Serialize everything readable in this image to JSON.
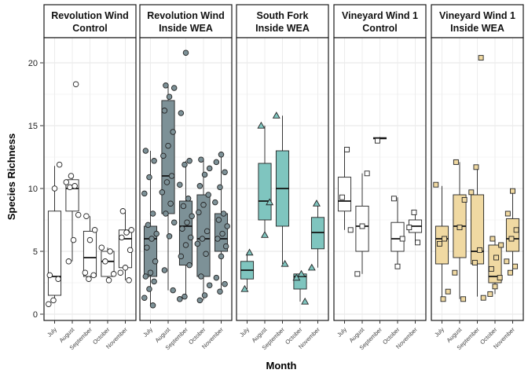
{
  "chart_data": {
    "type": "box",
    "ylabel": "Species Richness",
    "xlabel": "Month",
    "ylim": [
      -0.5,
      22
    ],
    "yticks": [
      0,
      5,
      10,
      15,
      20
    ],
    "grid": true,
    "months": [
      "July",
      "August",
      "September",
      "October",
      "November"
    ],
    "panels": [
      {
        "title_line1": "Revolution Wind",
        "title_line2": "Control",
        "fill": "#ffffff",
        "shape": "circle",
        "boxes": [
          {
            "month": "July",
            "whisker_low": 1,
            "q1": 1.5,
            "median": 3,
            "q3": 8.2,
            "whisker_high": 11.8
          },
          {
            "month": "August",
            "whisker_low": 4.2,
            "q1": 8.2,
            "median": 10,
            "q3": 10.7,
            "whisker_high": 11
          },
          {
            "month": "September",
            "whisker_low": 2.7,
            "q1": 3,
            "median": 4.5,
            "q3": 6.6,
            "whisker_high": 7.8
          },
          {
            "month": "October",
            "whisker_low": 2.7,
            "q1": 3,
            "median": 4.2,
            "q3": 5,
            "whisker_high": 5.3
          },
          {
            "month": "November",
            "whisker_low": 2.7,
            "q1": 3.7,
            "median": 6,
            "q3": 6.7,
            "whisker_high": 8.2
          }
        ],
        "points": {
          "July": [
            0.8,
            1.1,
            2.8,
            3.1,
            10,
            11.9
          ],
          "August": [
            4.2,
            5.9,
            7.9,
            10.1,
            10.2,
            10.5,
            11,
            18.3
          ],
          "September": [
            2.8,
            3.1,
            3.3,
            5.9,
            6.7,
            7.8
          ],
          "October": [
            2.7,
            3.2,
            4.2,
            5,
            5.3
          ],
          "November": [
            2.7,
            3.3,
            3.7,
            5.1,
            6.1,
            6.5,
            6.7,
            8.2
          ]
        }
      },
      {
        "title_line1": "Revolution Wind",
        "title_line2": "Inside WEA",
        "fill": "#7d9197",
        "shape": "circle",
        "boxes": [
          {
            "month": "July",
            "whisker_low": 0.7,
            "q1": 3,
            "median": 6,
            "q3": 7,
            "whisker_high": 13
          },
          {
            "month": "August",
            "whisker_low": 1.9,
            "q1": 8,
            "median": 11,
            "q3": 17,
            "whisker_high": 18.2
          },
          {
            "month": "September",
            "whisker_low": 1.2,
            "q1": 3.9,
            "median": 7,
            "q3": 9,
            "whisker_high": 12.2
          },
          {
            "month": "October",
            "whisker_low": 1.1,
            "q1": 3,
            "median": 6,
            "q3": 9.5,
            "whisker_high": 12.3
          },
          {
            "month": "November",
            "whisker_low": 1.8,
            "q1": 5,
            "median": 6,
            "q3": 8,
            "whisker_high": 12.7
          }
        ],
        "points": {
          "July": [
            0.7,
            1.3,
            2,
            2.6,
            3,
            3.3,
            4.2,
            5.3,
            6,
            6.4,
            7.1,
            8,
            9.6,
            10.9,
            12.2,
            13
          ],
          "August": [
            1.9,
            3.5,
            6.2,
            7.3,
            8,
            8.8,
            9.7,
            10.5,
            11,
            12.6,
            13.4,
            14.5,
            16.2,
            17.3,
            18,
            18.2
          ],
          "September": [
            1.2,
            1.4,
            3.9,
            4.6,
            5.5,
            6.1,
            6.8,
            7.3,
            7.8,
            8.6,
            9.2,
            10.3,
            11.9,
            12.2,
            16,
            20.8
          ],
          "October": [
            1.1,
            1.5,
            2.3,
            3,
            4.8,
            5.6,
            6,
            6.6,
            8.1,
            8.7,
            9.5,
            10.2,
            11.1,
            11.6,
            12.3
          ],
          "November": [
            1.8,
            2.4,
            2.9,
            4.6,
            5.4,
            6,
            6.4,
            7,
            7.5,
            8,
            8.9,
            10.1,
            11.3,
            12.1,
            12.7
          ]
        }
      },
      {
        "title_line1": "South Fork",
        "title_line2": "Inside WEA",
        "fill": "#7fc5bf",
        "shape": "triangle",
        "boxes": [
          {
            "month": "July",
            "whisker_low": 2,
            "q1": 2.8,
            "median": 3.5,
            "q3": 4.2,
            "whisker_high": 4.9
          },
          {
            "month": "August",
            "whisker_low": 6.2,
            "q1": 7.5,
            "median": 9,
            "q3": 12,
            "whisker_high": 15
          },
          {
            "month": "September",
            "whisker_low": 4,
            "q1": 7,
            "median": 10,
            "q3": 13,
            "whisker_high": 15.8
          },
          {
            "month": "October",
            "whisker_low": 1,
            "q1": 2,
            "median": 3,
            "q3": 3.2,
            "whisker_high": 3.3
          },
          {
            "month": "November",
            "whisker_low": 3.7,
            "q1": 5.2,
            "median": 6.5,
            "q3": 7.7,
            "whisker_high": 8.8
          }
        ],
        "points": {
          "July": [
            2,
            4.9
          ],
          "August": [
            6.3,
            8.9,
            15
          ],
          "September": [
            4,
            15.8
          ],
          "October": [
            1,
            2.9,
            3.2
          ],
          "November": [
            3.7,
            8.8
          ]
        }
      },
      {
        "title_line1": "Vineyard Wind 1",
        "title_line2": "Control",
        "fill": "#ffffff",
        "shape": "square",
        "boxes": [
          {
            "month": "July",
            "whisker_low": 6.7,
            "q1": 8.2,
            "median": 9,
            "q3": 10.9,
            "whisker_high": 13.1
          },
          {
            "month": "August",
            "whisker_low": 3.2,
            "q1": 5,
            "median": 7,
            "q3": 8.6,
            "whisker_high": 11.2
          },
          {
            "month": "September",
            "whisker_low": 13.9,
            "q1": 13.95,
            "median": 14,
            "q3": 14.05,
            "whisker_high": 14.1
          },
          {
            "month": "October",
            "whisker_low": 3.8,
            "q1": 5,
            "median": 6,
            "q3": 7.3,
            "whisker_high": 9.3
          },
          {
            "month": "November",
            "whisker_low": 5.7,
            "q1": 6.5,
            "median": 7,
            "q3": 7.5,
            "whisker_high": 8.1
          }
        ],
        "points": {
          "July": [
            6.7,
            9.3,
            13.1
          ],
          "August": [
            3.2,
            7,
            11.2
          ],
          "September": [
            13.8
          ],
          "October": [
            3.8,
            6,
            9.2
          ],
          "November": [
            5.7,
            6.9,
            8.1
          ]
        }
      },
      {
        "title_line1": "Vineyard Wind 1",
        "title_line2": "Inside WEA",
        "fill": "#f0d9a2",
        "shape": "square",
        "boxes": [
          {
            "month": "July",
            "whisker_low": 1.3,
            "q1": 4,
            "median": 6,
            "q3": 7,
            "whisker_high": 10.2
          },
          {
            "month": "August",
            "whisker_low": 1.2,
            "q1": 4.5,
            "median": 7,
            "q3": 9.5,
            "whisker_high": 12.1
          },
          {
            "month": "September",
            "whisker_low": 1.4,
            "q1": 4,
            "median": 5,
            "q3": 9.5,
            "whisker_high": 11.7
          },
          {
            "month": "October",
            "whisker_low": 1.6,
            "q1": 2.5,
            "median": 3,
            "q3": 5.5,
            "whisker_high": 6
          },
          {
            "month": "November",
            "whisker_low": 3.2,
            "q1": 5,
            "median": 6,
            "q3": 7.6,
            "whisker_high": 9.8
          }
        ],
        "points": {
          "July": [
            1.2,
            1.8,
            5.6,
            6,
            10.3
          ],
          "August": [
            1.2,
            3.3,
            6.9,
            9.1,
            12.1
          ],
          "September": [
            1.3,
            4.1,
            5.1,
            9.7,
            11.7,
            20.4
          ],
          "October": [
            1.6,
            2.2,
            2.9,
            3.6,
            4.5,
            5.5,
            6
          ],
          "November": [
            3.3,
            3.8,
            4.2,
            6,
            6.7,
            8,
            9.8
          ]
        }
      }
    ]
  }
}
